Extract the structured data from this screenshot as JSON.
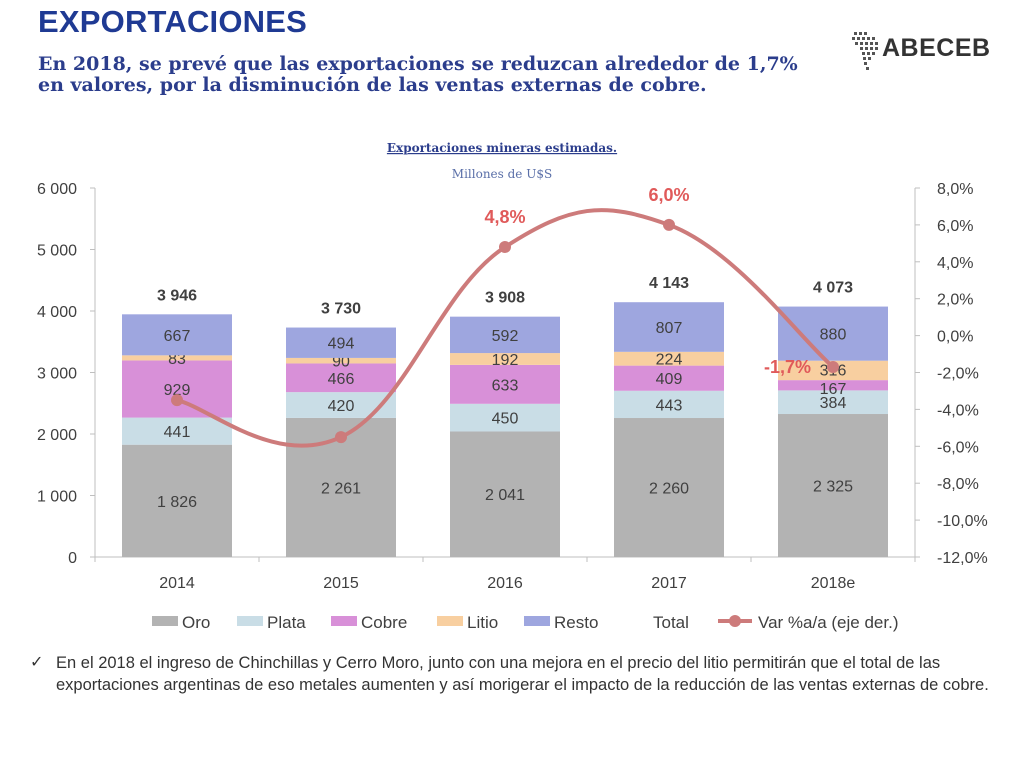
{
  "header": {
    "title": "EXPORTACIONES",
    "subtitle": "En 2018, se prevé que las exportaciones se reduzcan alrededor de 1,7% en valores, por la disminución de las ventas externas de cobre."
  },
  "logo": {
    "text": "ABECEB"
  },
  "chart_data": {
    "type": "bar",
    "stacked": true,
    "title": "Exportaciones mineras estimadas.",
    "subtitle": "Millones de U$S",
    "categories": [
      "2014",
      "2015",
      "2016",
      "2017",
      "2018e"
    ],
    "series": [
      {
        "name": "Oro",
        "color": "#b3b3b3",
        "values": [
          1826,
          2261,
          2041,
          2260,
          2325
        ],
        "labels": [
          "1 826",
          "2 261",
          "2 041",
          "2 260",
          "2 325"
        ]
      },
      {
        "name": "Plata",
        "color": "#c9dde6",
        "values": [
          441,
          420,
          450,
          443,
          384
        ],
        "labels": [
          "441",
          "420",
          "450",
          "443",
          "384"
        ]
      },
      {
        "name": "Cobre",
        "color": "#d890d8",
        "values": [
          929,
          466,
          633,
          409,
          167
        ],
        "labels": [
          "929",
          "466",
          "633",
          "409",
          "167"
        ]
      },
      {
        "name": "Litio",
        "color": "#f8cfa0",
        "values": [
          83,
          90,
          192,
          224,
          316
        ],
        "labels": [
          "83",
          "90",
          "192",
          "224",
          "316"
        ]
      },
      {
        "name": "Resto",
        "color": "#9ea6df",
        "values": [
          667,
          494,
          592,
          807,
          880
        ],
        "labels": [
          "667",
          "494",
          "592",
          "807",
          "880"
        ]
      }
    ],
    "totals": {
      "name": "Total",
      "values": [
        3946,
        3730,
        3908,
        4143,
        4073
      ],
      "labels": [
        "3 946",
        "3 730",
        "3 908",
        "4 143",
        "4 073"
      ]
    },
    "line": {
      "name": "Var %a/a (eje der.)",
      "color": "#cd7b7b",
      "axis": "right",
      "values": [
        -3.5,
        -5.5,
        4.8,
        6.0,
        -1.7
      ],
      "point_labels": [
        "",
        "",
        "4,8%",
        "6,0%",
        "-1,7%"
      ],
      "label_color": "#e05a5a"
    },
    "left_axis": {
      "ylim": [
        0,
        6000
      ],
      "ticks": [
        0,
        1000,
        2000,
        3000,
        4000,
        5000,
        6000
      ],
      "tick_labels": [
        "0",
        "1 000",
        "2 000",
        "3 000",
        "4 000",
        "5 000",
        "6 000"
      ]
    },
    "right_axis": {
      "ylim": [
        -12,
        8
      ],
      "ticks": [
        8,
        6,
        4,
        2,
        0,
        -2,
        -4,
        -6,
        -8,
        -10,
        -12
      ],
      "tick_labels": [
        "8,0%",
        "6,0%",
        "4,0%",
        "2,0%",
        "0,0%",
        "-2,0%",
        "-4,0%",
        "-6,0%",
        "-8,0%",
        "-10,0%",
        "-12,0%"
      ]
    },
    "legend_position": "bottom",
    "grid": false
  },
  "bullet": {
    "mark": "✓",
    "text": "En el 2018 el ingreso de Chinchillas y Cerro Moro, junto con una mejora en el precio del litio permitirán que el total de las exportaciones argentinas de eso metales aumenten y así morigerar el impacto de la reducción de las ventas externas de cobre."
  }
}
